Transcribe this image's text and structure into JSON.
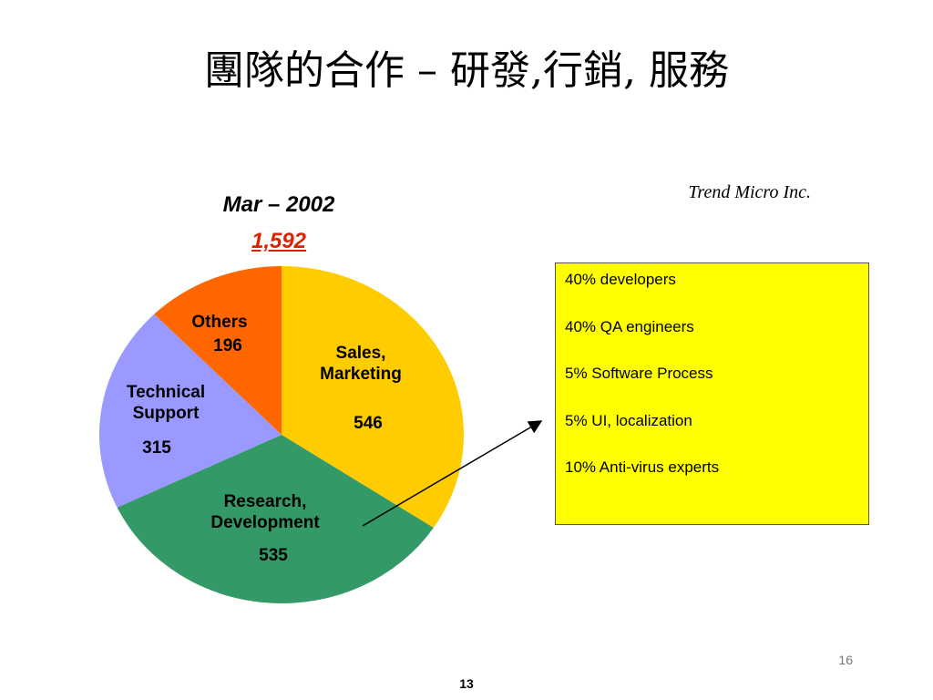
{
  "slide": {
    "title": "團隊的合作 – 研發,行銷, 服務",
    "company": "Trend Micro Inc.",
    "page_number": "16",
    "footer_number": "13"
  },
  "notes": {
    "items": [
      "40% developers",
      "40% QA engineers",
      "5% Software Process",
      "5% UI, localization",
      "10% Anti-virus experts"
    ],
    "background_color": "#ffff00"
  },
  "chart_data": {
    "type": "pie",
    "title": "Mar – 2002",
    "total_label": "1,592",
    "slices": [
      {
        "label_lines": [
          "Sales,",
          "Marketing"
        ],
        "value_label": "546",
        "value": 546,
        "color": "#ffcc00"
      },
      {
        "label_lines": [
          "Research,",
          "Development"
        ],
        "value_label": "535",
        "value": 535,
        "color": "#339966"
      },
      {
        "label_lines": [
          "Technical",
          "Support"
        ],
        "value_label": "315",
        "value": 315,
        "color": "#9999ff"
      },
      {
        "label_lines": [
          "Others"
        ],
        "value_label": "196",
        "value": 196,
        "color": "#ff6600"
      }
    ],
    "start": "12 o'clock",
    "direction": "clockwise"
  }
}
